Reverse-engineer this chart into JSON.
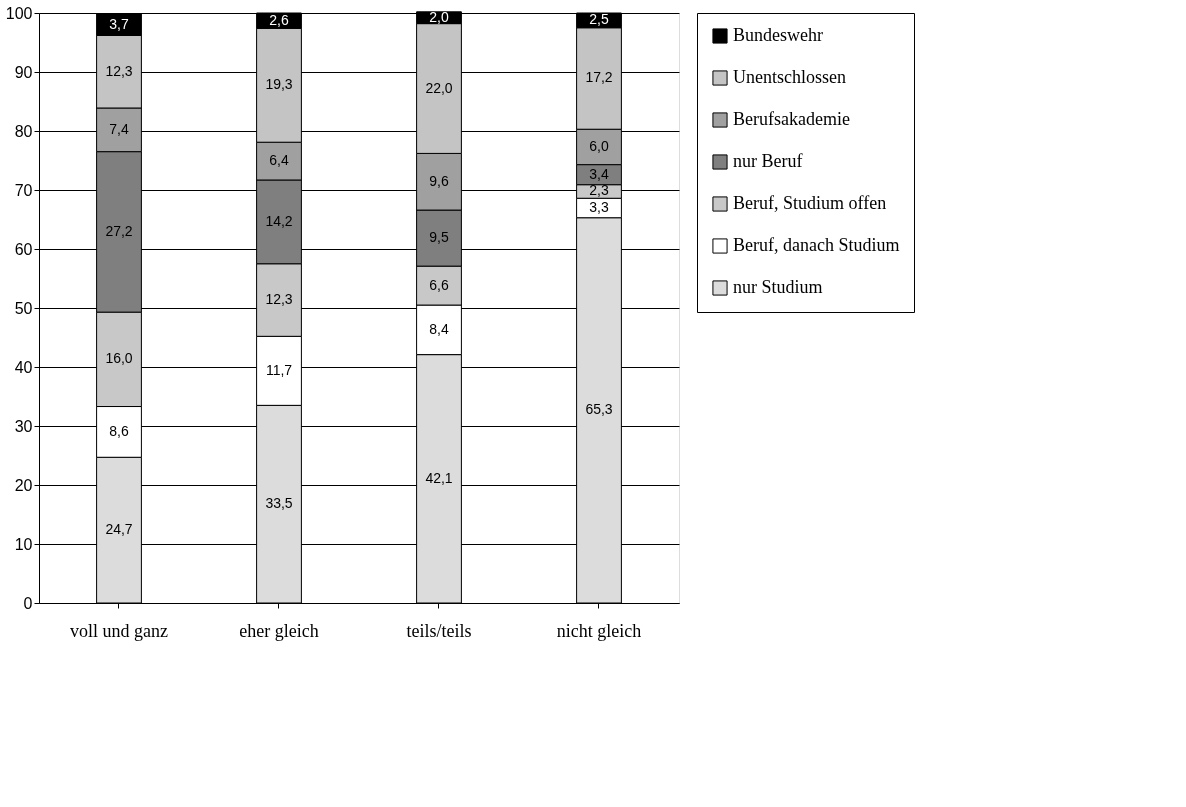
{
  "chart_data": {
    "type": "bar",
    "stacked": true,
    "categories": [
      "voll und ganz",
      "eher gleich",
      "teils/teils",
      "nicht gleich"
    ],
    "series": [
      {
        "name": "nur Studium",
        "color": "#dcdcdc",
        "values": [
          24.7,
          33.5,
          42.1,
          65.3
        ],
        "value_labels": [
          "24,7",
          "33,5",
          "42,1",
          "65,3"
        ]
      },
      {
        "name": "Beruf, danach Studium",
        "color": "#ffffff",
        "values": [
          8.6,
          11.7,
          8.4,
          3.3
        ],
        "value_labels": [
          "8,6",
          "11,7",
          "8,4",
          "3,3"
        ]
      },
      {
        "name": "Beruf, Studium offen",
        "color": "#c8c8c8",
        "values": [
          16.0,
          12.3,
          6.6,
          2.3
        ],
        "value_labels": [
          "16,0",
          "12,3",
          "6,6",
          "2,3"
        ]
      },
      {
        "name": "nur Beruf",
        "color": "#7f7f7f",
        "values": [
          27.2,
          14.2,
          9.5,
          3.4
        ],
        "value_labels": [
          "27,2",
          "14,2",
          "9,5",
          "3,4"
        ]
      },
      {
        "name": "Berufsakademie",
        "color": "#a0a0a0",
        "values": [
          7.4,
          6.4,
          9.6,
          6.0
        ],
        "value_labels": [
          "7,4",
          "6,4",
          "9,6",
          "6,0"
        ]
      },
      {
        "name": "Unentschlossen",
        "color": "#c4c4c4",
        "values": [
          12.3,
          19.3,
          22.0,
          17.2
        ],
        "value_labels": [
          "12,3",
          "19,3",
          "22,0",
          "17,2"
        ]
      },
      {
        "name": "Bundeswehr",
        "color": "#000000",
        "values": [
          3.7,
          2.6,
          2.0,
          2.5
        ],
        "value_labels": [
          "3,7",
          "2,6",
          "2,0",
          "2,5"
        ]
      }
    ],
    "ylim": [
      0,
      100
    ],
    "yticks": [
      0,
      10,
      20,
      30,
      40,
      50,
      60,
      70,
      80,
      90,
      100
    ],
    "grid": "y",
    "legend": "right"
  }
}
